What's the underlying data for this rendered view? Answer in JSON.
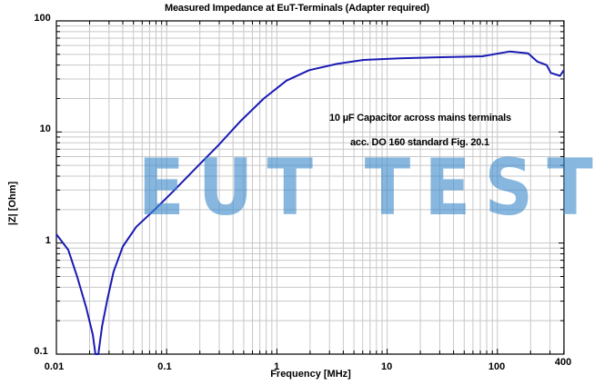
{
  "chart_data": {
    "type": "line",
    "title": "Measured Impedance at EuT-Terminals (Adapter required)",
    "xlabel": "Frequency [MHz]",
    "ylabel": "|Z| [Ohm]",
    "xscale": "log",
    "yscale": "log",
    "xlim": [
      0.01,
      400
    ],
    "ylim": [
      0.1,
      100
    ],
    "x_ticks": [
      "0.01",
      "0.1",
      "1",
      "10",
      "100",
      "400"
    ],
    "y_ticks": [
      "0.1",
      "1",
      "10",
      "100"
    ],
    "grid": true,
    "legend": null,
    "annotations": [
      "10 µF Capacitor across mains terminals",
      "acc. DO 160 standard Fig. 20.1"
    ],
    "watermark": "EUT TEST",
    "series": [
      {
        "name": "|Z|",
        "color": "#1a1ab4",
        "x": [
          0.01,
          0.0128,
          0.0155,
          0.0187,
          0.0214,
          0.0226,
          0.024,
          0.026,
          0.029,
          0.033,
          0.04,
          0.053,
          0.078,
          0.114,
          0.183,
          0.295,
          0.47,
          0.76,
          1.22,
          1.96,
          3.5,
          6.1,
          13,
          28,
          73,
          130,
          190,
          230,
          280,
          305,
          370,
          400
        ],
        "values": [
          1.2,
          0.87,
          0.49,
          0.26,
          0.15,
          0.1,
          0.1,
          0.18,
          0.31,
          0.55,
          0.93,
          1.4,
          2.0,
          2.9,
          4.7,
          7.6,
          12.6,
          20,
          29,
          36,
          41,
          44.5,
          46,
          47,
          48,
          53,
          51,
          43,
          40,
          34,
          32,
          36
        ]
      }
    ]
  },
  "labels": {
    "title": "Measured Impedance at EuT-Terminals (Adapter required)",
    "xlabel": "Frequency [MHz]",
    "ylabel": "|Z| [Ohm]",
    "annotation1": "10 µF Capacitor across mains terminals",
    "annotation2": "acc. DO 160 standard Fig. 20.1",
    "watermark": "EUT TEST"
  }
}
